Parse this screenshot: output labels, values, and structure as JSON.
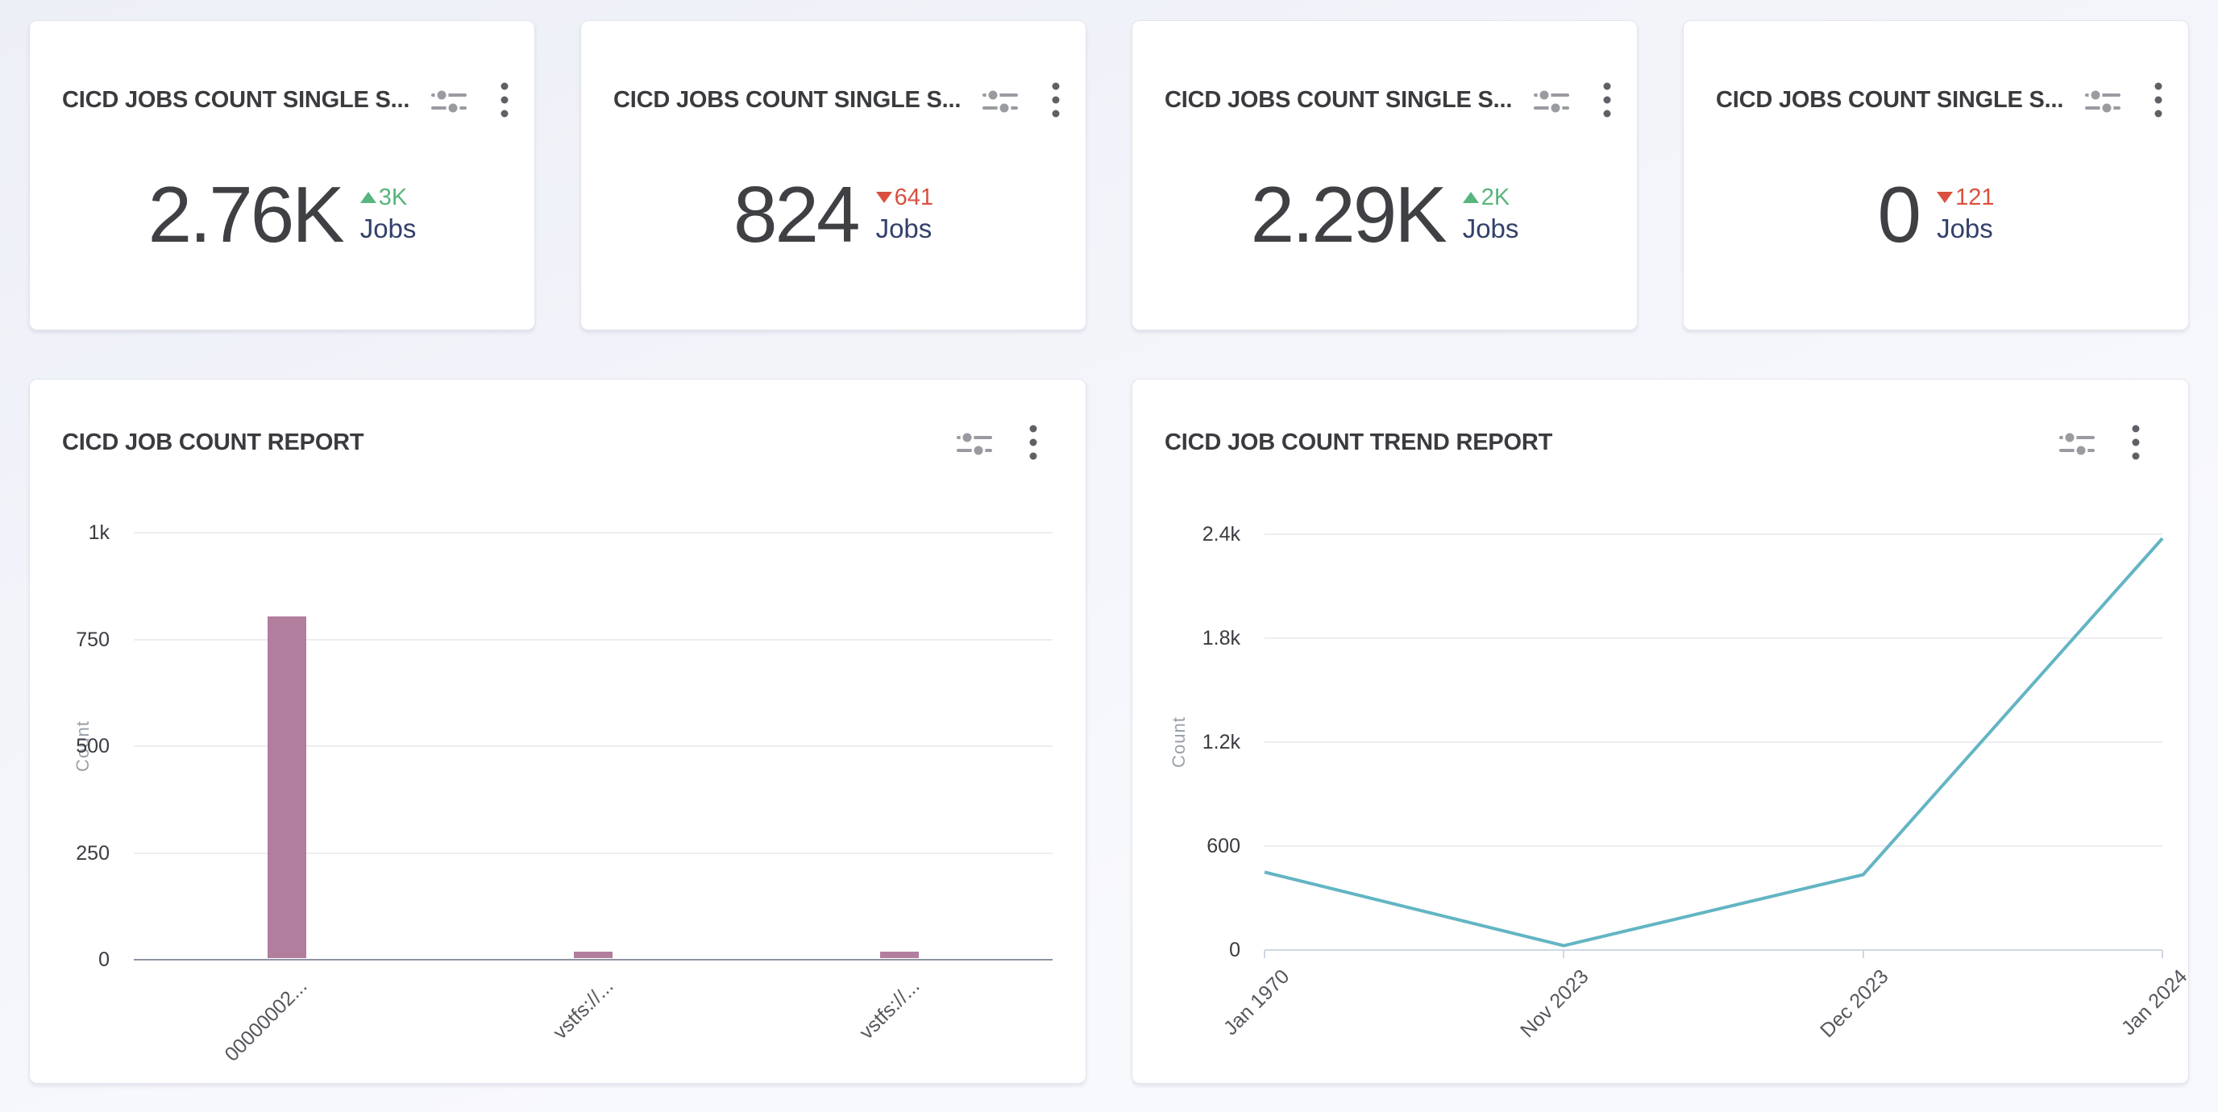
{
  "kpi_cards": [
    {
      "title": "CICD JOBS COUNT SINGLE S...",
      "value": "2.76K",
      "delta": "3K",
      "direction": "up",
      "unit": "Jobs"
    },
    {
      "title": "CICD JOBS COUNT SINGLE S...",
      "value": "824",
      "delta": "641",
      "direction": "down",
      "unit": "Jobs"
    },
    {
      "title": "CICD JOBS COUNT SINGLE S...",
      "value": "2.29K",
      "delta": "2K",
      "direction": "up",
      "unit": "Jobs"
    },
    {
      "title": "CICD JOBS COUNT SINGLE S...",
      "value": "0",
      "delta": "121",
      "direction": "down",
      "unit": "Jobs"
    }
  ],
  "icons": {
    "filter": "filter-sliders",
    "menu": "kebab-vertical-dots"
  },
  "chart_data": [
    {
      "type": "bar",
      "title": "CICD JOB COUNT REPORT",
      "categories": [
        "00000002...",
        "vstfs://...",
        "vstfs://..."
      ],
      "values": [
        800,
        15,
        15
      ],
      "xlabel": "",
      "ylabel": "Count",
      "ylim": [
        0,
        1000
      ],
      "yticks": [
        "0",
        "250",
        "500",
        "750",
        "1k"
      ],
      "grid": true,
      "legend_position": "none",
      "bar_color": "#b27e9e"
    },
    {
      "type": "line",
      "title": "CICD JOB COUNT TREND REPORT",
      "categories": [
        "Jan 1970",
        "Nov 2023",
        "Dec 2023",
        "Jan 2024"
      ],
      "values": [
        450,
        25,
        435,
        2376
      ],
      "xlabel": "",
      "ylabel": "Count",
      "ylim": [
        0,
        2400
      ],
      "yticks": [
        "0",
        "600",
        "1.2k",
        "1.8k",
        "2.4k"
      ],
      "grid": true,
      "legend_position": "none",
      "line_color": "#63b5c3"
    }
  ],
  "colors": {
    "background_top": "#edeff7",
    "background_bottom": "#f8f9fd",
    "card_background": "#ffffff",
    "card_border": "#e4e5ed",
    "title_text": "#3a3b3f",
    "kpi_number": "#3f4044",
    "unit_text": "#33406b",
    "delta_up": "#57b57d",
    "delta_down": "#d9503e",
    "icon_gray": "#9a9ba1",
    "kebab_gray": "#5f6065",
    "gridline": "#ededf1",
    "bar_axis_baseline": "#8f94a2",
    "line_axis": "#cfd8e3",
    "tick_text": "#3b3c41",
    "category_text": "#55565c",
    "axis_name_text": "#9aa0a8",
    "bar_fill": "#b27e9e",
    "line_stroke": "#63b5c3"
  }
}
